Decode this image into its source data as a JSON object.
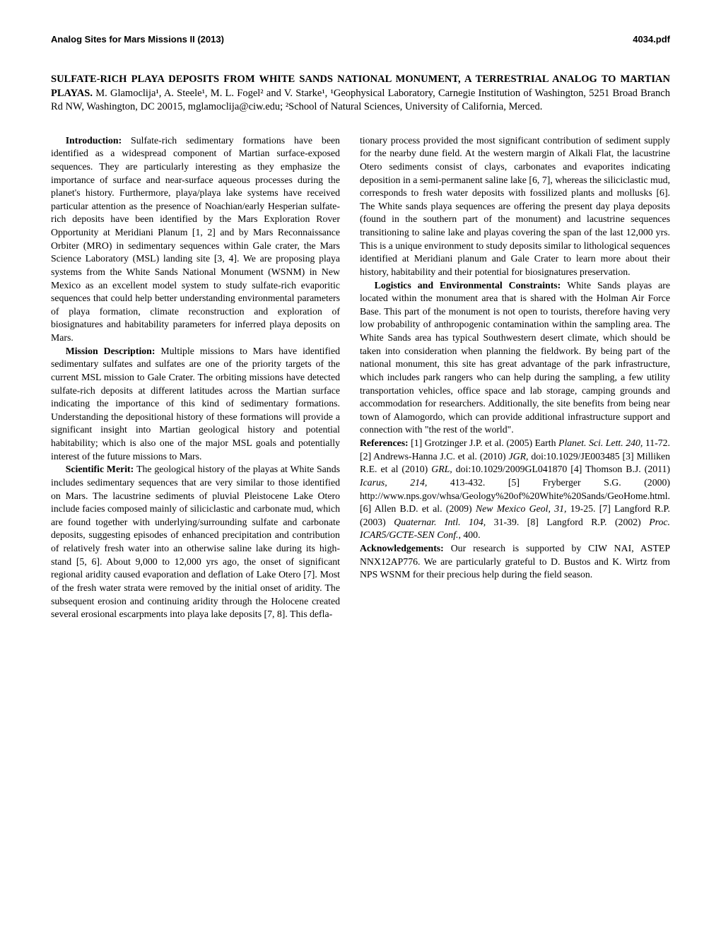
{
  "header": {
    "left": "Analog Sites for Mars Missions II (2013)",
    "right": "4034.pdf"
  },
  "title": {
    "line1_bold": "SULFATE-RICH PLAYA DEPOSITS FROM WHITE SANDS NATIONAL MONUMENT, A TERRESTRIAL ANALOG TO MARTIAN PLAYAS.",
    "authors": " M. Glamoclija¹, A. Steele¹, M. L. Fogel² and V. Starke¹, ¹Geophysical Laboratory, Carnegie Institution of Washington, 5251 Broad Branch Rd NW, Washington, DC 20015, mglamoclija@ciw.edu; ²School of Natural Sciences, University of California, Merced."
  },
  "left_col": {
    "p1_head": "Introduction: ",
    "p1_body": "Sulfate-rich sedimentary formations have been identified as a widespread component of Martian surface-exposed sequences. They are particularly interesting as they emphasize the importance of surface and near-surface aqueous processes during the planet's history. Furthermore, playa/playa lake systems have received particular attention as the presence of Noachian/early Hesperian sulfate-rich deposits have been identified by the Mars Exploration Rover Opportunity at Meridiani Planum [1, 2] and by Mars Reconnaissance Orbiter (MRO) in sedimentary sequences within Gale crater, the Mars Science Laboratory (MSL) landing site [3, 4]. We are proposing playa systems from the White Sands National Monument (WSNM) in New Mexico as an excellent model system to study sulfate-rich evaporitic sequences that could help better understanding environmental parameters of playa formation, climate reconstruction and exploration of biosignatures and habitability parameters for inferred playa deposits on Mars.",
    "p2_head": "Mission Description: ",
    "p2_body": "Multiple missions to Mars have identified sedimentary sulfates and sulfates are one of the priority targets of the current MSL mission to Gale Crater. The orbiting missions have detected sulfate-rich deposits at different latitudes across the Martian surface indicating the importance of this kind of sedimentary formations. Understanding the depositional history of these formations will provide a significant insight into Martian geological history and potential habitability; which is also one of the major MSL goals and potentially interest of the future missions to Mars.",
    "p3_head": "Scientific Merit: ",
    "p3_body": "The geological history of the playas at White Sands includes sedimentary sequences that are very similar to those identified on Mars. The lacustrine sediments of pluvial Pleistocene Lake Otero include facies composed mainly of siliciclastic and carbonate mud, which are found together with underlying/surrounding sulfate and carbonate deposits, suggesting episodes of enhanced precipitation and contribution of relatively fresh water into an otherwise saline lake during its high-stand [5, 6]. About 9,000 to 12,000 yrs ago, the onset of significant regional aridity caused evaporation and deflation of Lake Otero [7]. Most of the fresh water strata were removed by the initial onset of aridity. The subsequent erosion and continuing aridity through the Holocene created several erosional escarpments into playa lake deposits [7, 8]. This defla-"
  },
  "right_col": {
    "p1_body": "tionary process provided the most significant contribution of sediment supply for the nearby dune field. At the western margin of Alkali Flat, the lacustrine Otero sediments consist of clays, carbonates and evaporites indicating deposition in a semi-permanent saline lake [6, 7], whereas the siliciclastic mud, corresponds to fresh water deposits with fossilized plants and mollusks [6]. The White sands playa sequences are offering the present day playa deposits (found in the southern part of the monument) and lacustrine sequences transitioning to saline lake and playas covering the span of the last 12,000 yrs. This is a unique environment to study deposits similar to lithological sequences identified at Meridiani planum and Gale Crater to learn more about their history, habitability and their potential for biosignatures preservation.",
    "p2_head": "Logistics and Environmental Constraints: ",
    "p2_body": "White Sands playas are located within the monument area that is shared with the Holman Air Force Base. This part of the monument is not open to tourists, therefore having very low probability of anthropogenic contamination within the sampling area. The White Sands area has typical Southwestern desert climate, which should be taken into consideration when planning the fieldwork. By being part of the national monument, this site has great advantage of the park infrastructure, which includes park rangers who can help during the sampling, a few utility transportation vehicles, office space and lab storage, camping grounds and accommodation for researchers. Additionally, the site benefits from being near town of Alamogordo, which can provide additional infrastructure support and connection with \"the rest of the world\".",
    "refs_head": "References: ",
    "refs_1": "[1] Grotzinger J.P. et al. (2005) Earth ",
    "refs_i1": "Planet. Sci. Lett. 240,",
    "refs_2": " 11-72. [2] Andrews-Hanna J.C. et al. (2010) ",
    "refs_i2": "JGR,",
    "refs_3": " doi:10.1029/JE003485 [3] Milliken R.E. et al (2010) ",
    "refs_i3": "GRL,",
    "refs_4": " doi:10.1029/2009GL041870 [4] Thomson B.J. (2011) ",
    "refs_i4": "Icarus, 214,",
    "refs_5": " 413-432. [5] Fryberger S.G. (2000) http://www.nps.gov/whsa/Geology%20of%20White%20Sands/GeoHome.html. [6] Allen B.D. et al. (2009) ",
    "refs_i5": "New Mexico Geol, 31,",
    "refs_6": " 19-25. [7] Langford R.P. (2003) ",
    "refs_i6": "Quaternar. Intl. 104,",
    "refs_7": " 31-39. [8] Langford R.P. (2002) ",
    "refs_i7": "Proc. ICAR5/GCTE-SEN Conf.,",
    "refs_8": " 400.",
    "ack_head": "Acknowledgements: ",
    "ack_body": " Our research is supported by CIW NAI, ASTEP NNX12AP776. We are particularly grateful to D. Bustos and K. Wirtz from NPS WSNM for their precious help during the field season."
  }
}
